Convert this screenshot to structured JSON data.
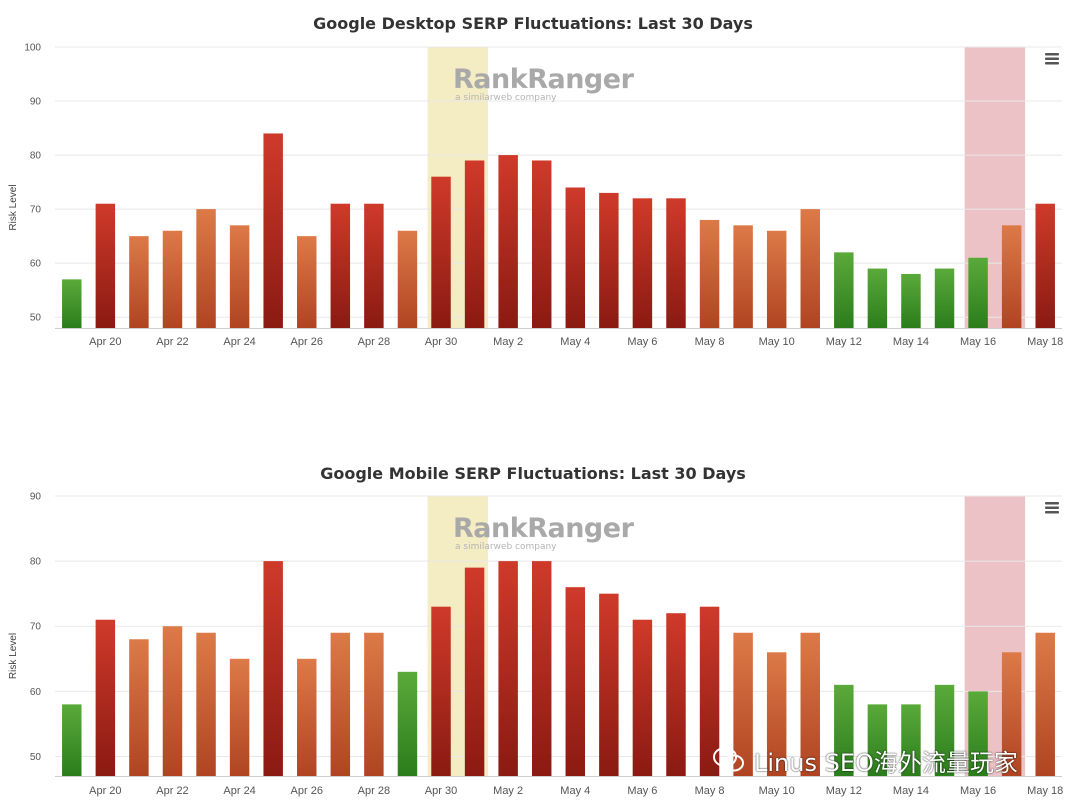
{
  "colors": {
    "green_top": "#5aaa3a",
    "green_bottom": "#2b7d1c",
    "orange_top": "#dd7a48",
    "orange_bottom": "#b04422",
    "red_top": "#cf3a2a",
    "red_bottom": "#8a1a12",
    "highlight_yellow": "#f4ecc2",
    "highlight_red": "#ecc2c6",
    "grid": "#e8e8e8",
    "axis": "#cccccc",
    "menu": "#555555"
  },
  "watermark": {
    "brand_part1": "Rank",
    "brand_part2": "Ranger",
    "tagline": "a similarweb company"
  },
  "wechat_watermark": {
    "icon": "wechat-icon",
    "text": "Linus SEO海外流量玩家"
  },
  "chart_data": [
    {
      "type": "bar",
      "title": "Google Desktop SERP Fluctuations: Last 30 Days",
      "xlabel": "",
      "ylabel": "Risk Level",
      "ylim": [
        48,
        100
      ],
      "yticks": [
        50,
        60,
        70,
        80,
        90,
        100
      ],
      "grid": true,
      "menu_icon": "hamburger-menu-icon",
      "categories": [
        "Apr 19",
        "Apr 20",
        "Apr 21",
        "Apr 22",
        "Apr 23",
        "Apr 24",
        "Apr 25",
        "Apr 26",
        "Apr 27",
        "Apr 28",
        "Apr 29",
        "Apr 30",
        "May 1",
        "May 2",
        "May 3",
        "May 4",
        "May 5",
        "May 6",
        "May 7",
        "May 8",
        "May 9",
        "May 10",
        "May 11",
        "May 12",
        "May 13",
        "May 14",
        "May 15",
        "May 16",
        "May 17",
        "May 18"
      ],
      "values": [
        57,
        71,
        65,
        66,
        70,
        67,
        84,
        65,
        71,
        71,
        66,
        76,
        79,
        80,
        79,
        74,
        73,
        72,
        72,
        68,
        67,
        66,
        70,
        62,
        59,
        58,
        59,
        61,
        67,
        71
      ],
      "tick_labels": [
        "Apr 20",
        "Apr 22",
        "Apr 24",
        "Apr 26",
        "Apr 28",
        "Apr 30",
        "May 2",
        "May 4",
        "May 6",
        "May 8",
        "May 10",
        "May 12",
        "May 14",
        "May 16",
        "May 18"
      ],
      "highlight_bands": [
        {
          "from": "Apr 30",
          "to": "May 1",
          "color": "yellow"
        },
        {
          "from": "May 16",
          "to": "May 17",
          "color": "red"
        }
      ]
    },
    {
      "type": "bar",
      "title": "Google Mobile SERP Fluctuations: Last 30 Days",
      "xlabel": "",
      "ylabel": "Risk Level",
      "ylim": [
        47,
        90
      ],
      "yticks": [
        50,
        60,
        70,
        80,
        90
      ],
      "grid": true,
      "menu_icon": "hamburger-menu-icon",
      "categories": [
        "Apr 19",
        "Apr 20",
        "Apr 21",
        "Apr 22",
        "Apr 23",
        "Apr 24",
        "Apr 25",
        "Apr 26",
        "Apr 27",
        "Apr 28",
        "Apr 29",
        "Apr 30",
        "May 1",
        "May 2",
        "May 3",
        "May 4",
        "May 5",
        "May 6",
        "May 7",
        "May 8",
        "May 9",
        "May 10",
        "May 11",
        "May 12",
        "May 13",
        "May 14",
        "May 15",
        "May 16",
        "May 17",
        "May 18"
      ],
      "values": [
        58,
        71,
        68,
        70,
        69,
        65,
        80,
        65,
        69,
        69,
        63,
        73,
        79,
        80,
        80,
        76,
        75,
        71,
        72,
        73,
        69,
        66,
        69,
        61,
        58,
        58,
        61,
        60,
        66,
        69
      ],
      "tick_labels": [
        "Apr 20",
        "Apr 22",
        "Apr 24",
        "Apr 26",
        "Apr 28",
        "Apr 30",
        "May 2",
        "May 4",
        "May 6",
        "May 8",
        "May 10",
        "May 12",
        "May 14",
        "May 16",
        "May 18"
      ],
      "highlight_bands": [
        {
          "from": "Apr 30",
          "to": "May 1",
          "color": "yellow"
        },
        {
          "from": "May 16",
          "to": "May 17",
          "color": "red"
        }
      ]
    }
  ]
}
